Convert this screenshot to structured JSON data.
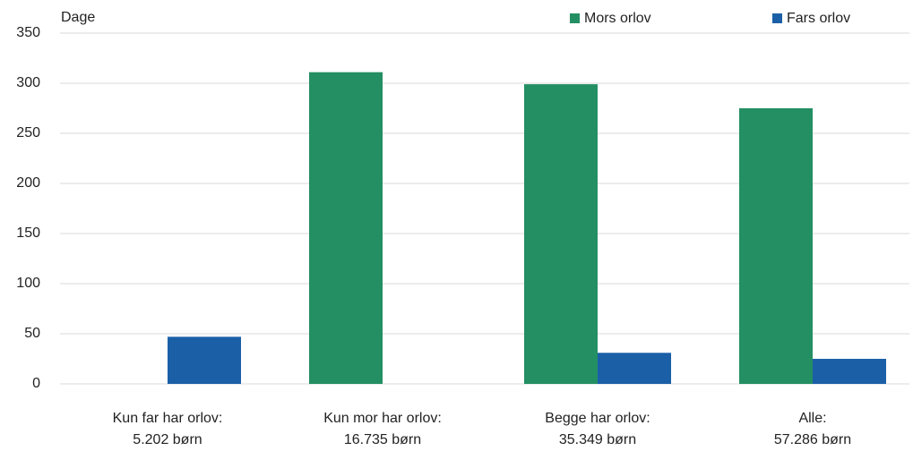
{
  "chart_data": {
    "type": "bar",
    "y_label": "Dage",
    "categories": [
      [
        "Kun far har orlov:",
        "5.202 børn"
      ],
      [
        "Kun mor har orlov:",
        "16.735 børn"
      ],
      [
        "Begge har orlov:",
        "35.349 børn"
      ],
      [
        "Alle:",
        "57.286 børn"
      ]
    ],
    "series": [
      {
        "name": "Mors orlov",
        "color": "#238f63",
        "values": [
          null,
          311,
          299,
          275
        ]
      },
      {
        "name": "Fars orlov",
        "color": "#1b5fa7",
        "values": [
          47,
          null,
          31,
          25
        ]
      }
    ],
    "ylim": [
      0,
      350
    ],
    "yticks": [
      0,
      50,
      100,
      150,
      200,
      250,
      300,
      350
    ],
    "grid": true,
    "legend": "top-right"
  }
}
